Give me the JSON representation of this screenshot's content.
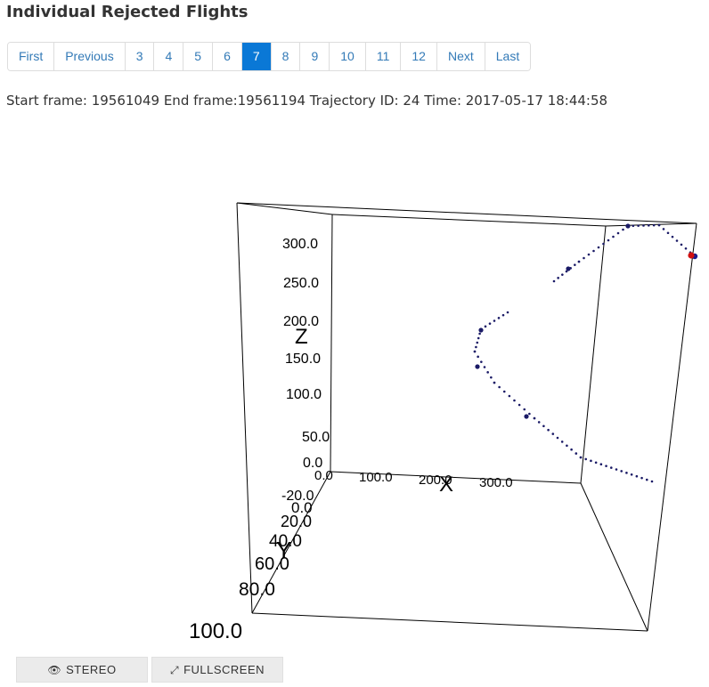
{
  "page": {
    "title": "Individual Rejected Flights",
    "info": "Start frame: 19561049 End frame:19561194 Trajectory ID: 24 Time: 2017-05-17 18:44:58"
  },
  "pagination": {
    "items": [
      "First",
      "Previous",
      "3",
      "4",
      "5",
      "6",
      "7",
      "8",
      "9",
      "10",
      "11",
      "12",
      "Next",
      "Last"
    ],
    "active": "7",
    "active_color": "#0a78d6",
    "link_color": "#337ab7"
  },
  "buttons": {
    "stereo": {
      "label": "STEREO",
      "icon": "eye-icon"
    },
    "fullscreen": {
      "label": "FULLSCREEN",
      "icon": "expand-icon"
    }
  },
  "chart_data": {
    "type": "scatter",
    "dimensions": "3d",
    "axes": {
      "x": {
        "label": "X",
        "ticks": [
          "0.0",
          "100.0",
          "200.0",
          "300.0"
        ]
      },
      "y": {
        "label": "Y",
        "ticks": [
          "-20.0",
          "0.0",
          "20.0",
          "40.0",
          "60.0",
          "80.0",
          "100.0"
        ]
      },
      "z": {
        "label": "Z",
        "ticks": [
          "0.0",
          "50.0",
          "100.0",
          "150.0",
          "200.0",
          "250.0",
          "300.0"
        ]
      }
    },
    "series": [
      {
        "color": "#1a1a66",
        "marker": "dot",
        "points": "trajectory"
      }
    ],
    "start_marker_color": "#1a1a8a",
    "end_marker_color": "#d01010"
  }
}
